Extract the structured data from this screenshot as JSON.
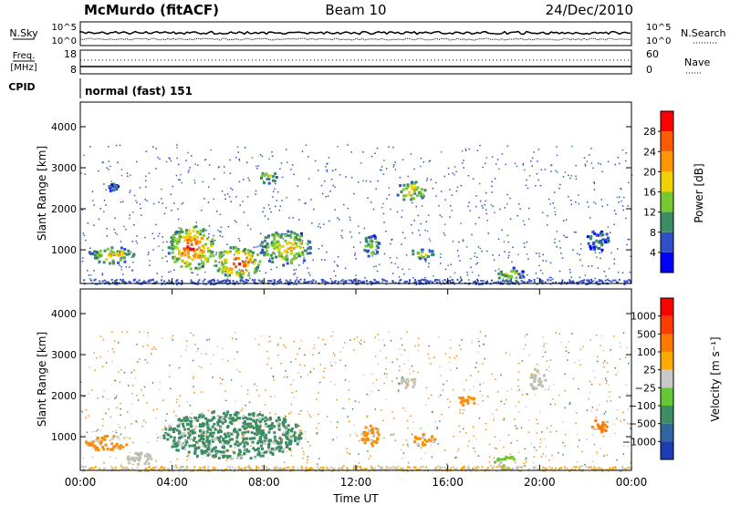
{
  "header": {
    "station": "McMurdo (fitACF)",
    "beam": "Beam 10",
    "date": "24/Dec/2010"
  },
  "status_panel": {
    "left_labels": {
      "nsky": "N.Sky",
      "freq": "Freq.",
      "freq_unit": "[MHz]",
      "cpid": "CPID"
    },
    "right_labels": {
      "nsearch": "N.Search",
      "nave": "Nave"
    },
    "noise_axis_ticks": [
      "10^5",
      "10^0"
    ],
    "noise_right_ticks": [
      "10^5",
      "10^0"
    ],
    "freq_axis_ticks": [
      "18",
      "8"
    ],
    "nave_axis_ticks": [
      "60",
      "0"
    ],
    "cpid_text": "normal (fast) 151"
  },
  "chart_data": [
    {
      "type": "heatmap",
      "name": "power",
      "ylabel": "Slant Range [km]",
      "ylim": [
        180,
        4600
      ],
      "y_ticks": [
        1000,
        2000,
        3000,
        4000
      ],
      "x_ticks": [
        "00:00",
        "04:00",
        "08:00",
        "12:00",
        "16:00",
        "20:00",
        "00:00"
      ],
      "xlim_hours": [
        0,
        24
      ],
      "colorbar": {
        "label": "Power [dB]",
        "tick_labels": [
          "4",
          "8",
          "12",
          "16",
          "20",
          "24",
          "28"
        ],
        "colors": [
          "#0000ff",
          "#2f50c8",
          "#3c8c64",
          "#78c832",
          "#f0d200",
          "#ff9600",
          "#ff5a00",
          "#ff0000"
        ]
      },
      "echo_regions": [
        {
          "t0": 0.3,
          "t1": 2.3,
          "r0": 700,
          "r1": 1100,
          "level": 5
        },
        {
          "t0": 3.8,
          "t1": 5.8,
          "r0": 550,
          "r1": 1600,
          "level": 7
        },
        {
          "t0": 5.8,
          "t1": 7.8,
          "r0": 350,
          "r1": 1100,
          "level": 7
        },
        {
          "t0": 7.8,
          "t1": 10.0,
          "r0": 650,
          "r1": 1500,
          "level": 5
        },
        {
          "t0": 12.3,
          "t1": 13.0,
          "r0": 850,
          "r1": 1400,
          "level": 4
        },
        {
          "t0": 13.7,
          "t1": 15.0,
          "r0": 2200,
          "r1": 2700,
          "level": 5
        },
        {
          "t0": 14.3,
          "t1": 15.4,
          "r0": 800,
          "r1": 1050,
          "level": 4
        },
        {
          "t0": 7.7,
          "t1": 8.6,
          "r0": 2650,
          "r1": 2950,
          "level": 4
        },
        {
          "t0": 18.0,
          "t1": 19.3,
          "r0": 250,
          "r1": 600,
          "level": 4
        },
        {
          "t0": 22.0,
          "t1": 23.0,
          "r0": 1000,
          "r1": 1500,
          "level": 2
        },
        {
          "t0": 1.2,
          "t1": 1.6,
          "r0": 2450,
          "r1": 2650,
          "level": 2
        }
      ]
    },
    {
      "type": "heatmap",
      "name": "velocity",
      "ylabel": "Slant Range [km]",
      "ylim": [
        180,
        4600
      ],
      "y_ticks": [
        1000,
        2000,
        3000,
        4000
      ],
      "x_ticks": [
        "00:00",
        "04:00",
        "08:00",
        "12:00",
        "16:00",
        "20:00",
        "00:00"
      ],
      "xlabel": "Time UT",
      "xlim_hours": [
        0,
        24
      ],
      "colorbar": {
        "label": "Velocity [m s⁻¹]",
        "tick_labels": [
          "1000",
          "500",
          "100",
          "25",
          "−25",
          "−100",
          "−500",
          "−1000"
        ],
        "colors": [
          "#1e3cb4",
          "#3264a0",
          "#3c8c64",
          "#64c832",
          "#c8c8c8",
          "#ffaa00",
          "#ff7800",
          "#ff3c00",
          "#ff0000"
        ]
      },
      "echo_regions": [
        {
          "t0": 0.2,
          "t1": 2.0,
          "r0": 700,
          "r1": 1050,
          "color": "#ff8c00"
        },
        {
          "t0": 3.5,
          "t1": 9.6,
          "r0": 500,
          "r1": 1650,
          "color": "#3c8c64"
        },
        {
          "t0": 12.2,
          "t1": 13.0,
          "r0": 800,
          "r1": 1300,
          "color": "#ff8c00"
        },
        {
          "t0": 13.8,
          "t1": 14.6,
          "r0": 2200,
          "r1": 2500,
          "color": "#c0c0b0"
        },
        {
          "t0": 14.3,
          "t1": 15.4,
          "r0": 800,
          "r1": 1100,
          "color": "#ff8c00"
        },
        {
          "t0": 19.5,
          "t1": 20.2,
          "r0": 2200,
          "r1": 2700,
          "color": "#c0c0b0"
        },
        {
          "t0": 22.2,
          "t1": 22.9,
          "r0": 1100,
          "r1": 1450,
          "color": "#ff7800"
        },
        {
          "t0": 16.3,
          "t1": 17.2,
          "r0": 1800,
          "r1": 2000,
          "color": "#ff8c00"
        },
        {
          "t0": 18.0,
          "t1": 19.0,
          "r0": 250,
          "r1": 550,
          "color": "#64c832"
        },
        {
          "t0": 2.0,
          "t1": 3.2,
          "r0": 300,
          "r1": 650,
          "color": "#c0c0b0"
        }
      ]
    }
  ]
}
